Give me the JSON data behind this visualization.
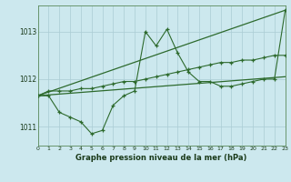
{
  "bg_color": "#cce8ee",
  "grid_color": "#aaccd4",
  "line_color": "#2d6a2d",
  "x_min": 0,
  "x_max": 23,
  "y_min": 1010.6,
  "y_max": 1013.55,
  "y_ticks": [
    1011,
    1012,
    1013
  ],
  "y_tick_labels": [
    "1011",
    "1012",
    "1013"
  ],
  "x_label": "Graphe pression niveau de la mer (hPa)",
  "series": [
    {
      "x": [
        0,
        23
      ],
      "y": [
        1011.65,
        1013.45
      ]
    },
    {
      "x": [
        0,
        23
      ],
      "y": [
        1011.65,
        1012.05
      ]
    },
    {
      "x": [
        0,
        1,
        2,
        3,
        4,
        5,
        6,
        7,
        8,
        9,
        10,
        11,
        12,
        13,
        14,
        15,
        16,
        17,
        18,
        19,
        20,
        21,
        22,
        23
      ],
      "y": [
        1011.65,
        1011.75,
        1011.75,
        1011.75,
        1011.8,
        1011.8,
        1011.85,
        1011.9,
        1011.95,
        1011.95,
        1012.0,
        1012.05,
        1012.1,
        1012.15,
        1012.2,
        1012.25,
        1012.3,
        1012.35,
        1012.35,
        1012.4,
        1012.4,
        1012.45,
        1012.5,
        1012.5
      ]
    },
    {
      "x": [
        0,
        1,
        2,
        3,
        4,
        5,
        6,
        7,
        8,
        9,
        10,
        11,
        12,
        13,
        14,
        15,
        16,
        17,
        18,
        19,
        20,
        21,
        22,
        23
      ],
      "y": [
        1011.65,
        1011.65,
        1011.3,
        1011.2,
        1011.1,
        1010.85,
        1010.92,
        1011.45,
        1011.65,
        1011.75,
        1013.0,
        1012.7,
        1013.05,
        1012.55,
        1012.15,
        1011.95,
        1011.95,
        1011.85,
        1011.85,
        1011.9,
        1011.95,
        1012.0,
        1012.0,
        1013.45
      ]
    }
  ]
}
